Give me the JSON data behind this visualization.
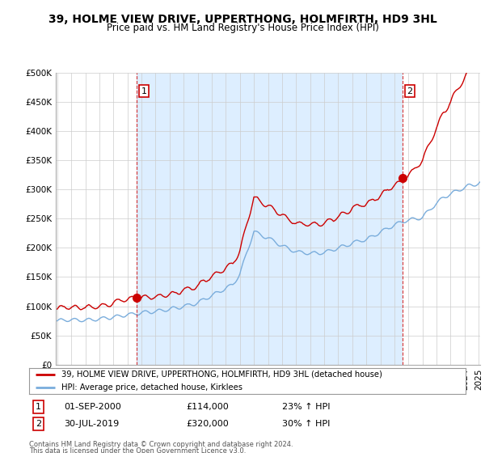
{
  "title": "39, HOLME VIEW DRIVE, UPPERTHONG, HOLMFIRTH, HD9 3HL",
  "subtitle": "Price paid vs. HM Land Registry's House Price Index (HPI)",
  "title_fontsize": 10,
  "subtitle_fontsize": 8.5,
  "ylim": [
    0,
    500000
  ],
  "yticks": [
    0,
    50000,
    100000,
    150000,
    200000,
    250000,
    300000,
    350000,
    400000,
    450000,
    500000
  ],
  "ytick_labels": [
    "£0",
    "£50K",
    "£100K",
    "£150K",
    "£200K",
    "£250K",
    "£300K",
    "£350K",
    "£400K",
    "£450K",
    "£500K"
  ],
  "house_color": "#cc0000",
  "hpi_color": "#7aaddc",
  "shade_color": "#ddeeff",
  "annotation_box_color": "#cc0000",
  "marker1_month": 68,
  "marker1_value": 114000,
  "marker2_month": 295,
  "marker2_value": 320000,
  "legend_house_label": "39, HOLME VIEW DRIVE, UPPERTHONG, HOLMFIRTH, HD9 3HL (detached house)",
  "legend_hpi_label": "HPI: Average price, detached house, Kirklees",
  "annotation1_date": "01-SEP-2000",
  "annotation1_price": "£114,000",
  "annotation1_hpi": "23% ↑ HPI",
  "annotation2_date": "30-JUL-2019",
  "annotation2_price": "£320,000",
  "annotation2_hpi": "30% ↑ HPI",
  "footer1": "Contains HM Land Registry data © Crown copyright and database right 2024.",
  "footer2": "This data is licensed under the Open Government Licence v3.0.",
  "start_year": 1995,
  "end_year": 2025,
  "background_color": "#ffffff",
  "grid_color": "#cccccc"
}
